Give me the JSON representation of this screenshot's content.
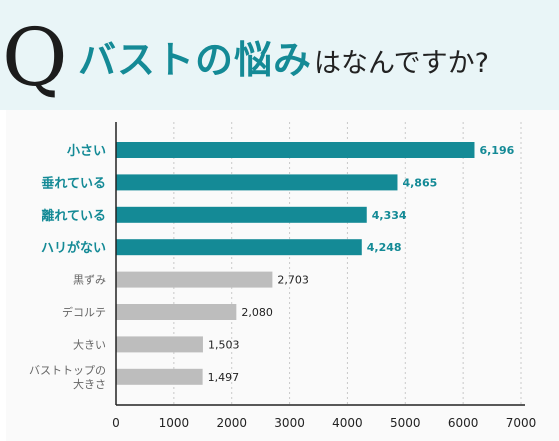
{
  "header": {
    "q_mark": "Q",
    "title_strong": "バストの悩み",
    "title_rest": "はなんですか?"
  },
  "chart_data": {
    "type": "bar",
    "orientation": "horizontal",
    "categories": [
      "小さい",
      "垂れている",
      "離れている",
      "ハリがない",
      "黒ずみ",
      "デコルテ",
      "大きい",
      "バストトップの大きさ"
    ],
    "category_lines": [
      [
        "小さい"
      ],
      [
        "垂れている"
      ],
      [
        "離れている"
      ],
      [
        "ハリがない"
      ],
      [
        "黒ずみ"
      ],
      [
        "デコルテ"
      ],
      [
        "大きい"
      ],
      [
        "バストトップの",
        "大きさ"
      ]
    ],
    "values": [
      6196,
      4865,
      4334,
      4248,
      2703,
      2080,
      1503,
      1497
    ],
    "value_labels": [
      "6,196",
      "4,865",
      "4,334",
      "4,248",
      "2,703",
      "2,080",
      "1,503",
      "1,497"
    ],
    "highlighted": [
      true,
      true,
      true,
      true,
      false,
      false,
      false,
      false
    ],
    "xlim": [
      0,
      7000
    ],
    "xticks": [
      "0",
      "1000",
      "2000",
      "3000",
      "4000",
      "5000",
      "6000",
      "7000"
    ],
    "grid": true,
    "colors": {
      "highlight": "#148a96",
      "normal": "#bdbdbd",
      "highlight_label": "#148a96",
      "normal_label": "#666666"
    }
  }
}
